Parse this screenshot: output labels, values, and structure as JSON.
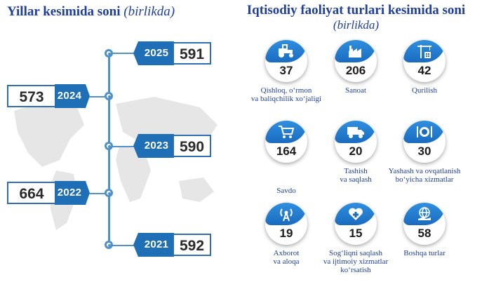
{
  "left": {
    "title": "Yillar kesimida soni",
    "title_unit": "(birlikda)",
    "years": [
      {
        "year": "2025",
        "value": "591",
        "side": "right"
      },
      {
        "year": "2024",
        "value": "573",
        "side": "left"
      },
      {
        "year": "2023",
        "value": "590",
        "side": "right"
      },
      {
        "year": "2022",
        "value": "664",
        "side": "left"
      },
      {
        "year": "2021",
        "value": "592",
        "side": "right"
      }
    ]
  },
  "right": {
    "title": "Iqtisodiy faoliyat turlari kesimida soni",
    "subtitle": "(birlikda)",
    "sectors": [
      {
        "icon": "tractor-icon",
        "value": "37",
        "label_line1": "Qishloq, o‘rmon",
        "label_line2": "va baliqchilik xo‘jaligi",
        "label_line3": ""
      },
      {
        "icon": "factory-icon",
        "value": "206",
        "label_line1": "Sanoat",
        "label_line2": "",
        "label_line3": ""
      },
      {
        "icon": "crane-icon",
        "value": "42",
        "label_line1": "Qurilish",
        "label_line2": "",
        "label_line3": ""
      },
      {
        "icon": "shopping-cart-icon",
        "value": "164",
        "label_line1": "Savdo",
        "label_line2": "",
        "label_line3": ""
      },
      {
        "icon": "truck-icon",
        "value": "20",
        "label_line1": "Tashish",
        "label_line2": "va saqlash",
        "label_line3": ""
      },
      {
        "icon": "dining-icon",
        "value": "30",
        "label_line1": "Yashash va ovqatlanish",
        "label_line2": "bo‘yicha xizmatlar",
        "label_line3": ""
      },
      {
        "icon": "antenna-icon",
        "value": "19",
        "label_line1": "Axborot",
        "label_line2": "va aloqa",
        "label_line3": ""
      },
      {
        "icon": "health-heart-icon",
        "value": "15",
        "label_line1": "Sog‘liqni saqlash",
        "label_line2": "va ijtimoiy xizmatlar",
        "label_line3": "ko‘rsatish"
      },
      {
        "icon": "globe-hand-icon",
        "value": "58",
        "label_line1": "Boshqa turlar",
        "label_line2": "",
        "label_line3": ""
      }
    ]
  },
  "colors": {
    "title": "#1f3f99",
    "accent": "#1e6fb6",
    "line": "#4f91c9"
  }
}
